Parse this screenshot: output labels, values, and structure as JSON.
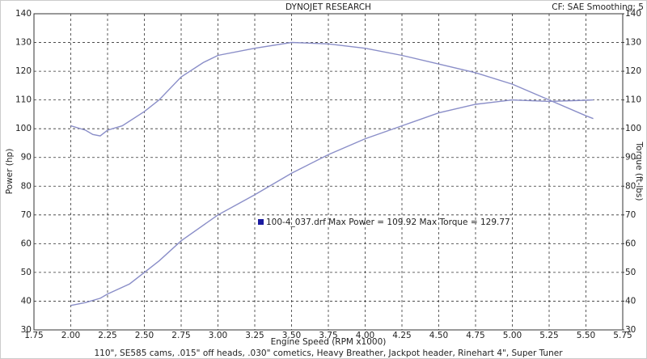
{
  "chart_data": {
    "type": "line",
    "title": "DYNOJET RESEARCH",
    "subtitle": "CF: SAE  Smoothing: 5",
    "x_label": "Engine Speed (RPM x1000)",
    "y_label": "Power (hp)",
    "y2_label": "Torque (ft-lbs)",
    "legend_text": "100-4_037.drf Max Power = 109.92     Max Torque = 129.77",
    "footer": "110\", SE585 cams, .015\" off heads, .030\" cometics, Heavy Breather, Jackpot header, Rinehart 4\", Super Tuner",
    "grid": true,
    "xlim": [
      1.75,
      5.75
    ],
    "ylim": [
      30,
      140
    ],
    "y2lim": [
      30,
      140
    ],
    "xticks": [
      1.75,
      {
        "value": 2,
        "label": "2.00"
      },
      2.25,
      {
        "value": 2.5,
        "label": "2.50"
      },
      2.75,
      {
        "value": 3,
        "label": "3.00"
      },
      3.25,
      {
        "value": 3.5,
        "label": "3.50"
      },
      3.75,
      {
        "value": 4,
        "label": "4.00"
      },
      4.25,
      {
        "value": 4.5,
        "label": "4.50"
      },
      4.75,
      {
        "value": 5,
        "label": "5.00"
      },
      5.25,
      {
        "value": 5.5,
        "label": "5.50"
      },
      5.75
    ],
    "yticks": [
      30,
      40,
      50,
      60,
      70,
      80,
      90,
      100,
      110,
      120,
      130,
      140
    ],
    "y2ticks": [
      30,
      40,
      50,
      60,
      70,
      80,
      90,
      100,
      110,
      120,
      130,
      140
    ],
    "series": [
      {
        "color": "#8a8ec8",
        "x": [
          2.0,
          2.1,
          2.2,
          2.25,
          2.4,
          2.5,
          2.6,
          2.75,
          3.0,
          3.25,
          3.5,
          3.75,
          4.0,
          4.25,
          4.5,
          4.75,
          5.0,
          5.25,
          5.5,
          5.55
        ],
        "values": [
          38.5,
          39.5,
          41,
          42.5,
          46,
          50,
          54,
          61,
          70,
          77,
          84.5,
          91,
          96.5,
          101,
          105.5,
          108.5,
          110,
          109.5,
          109.9,
          110
        ]
      },
      {
        "color": "#8a8ec8",
        "axis": "y2",
        "x": [
          2.0,
          2.1,
          2.15,
          2.2,
          2.25,
          2.35,
          2.5,
          2.6,
          2.75,
          2.9,
          3.0,
          3.25,
          3.5,
          3.75,
          4.0,
          4.25,
          4.5,
          4.75,
          5.0,
          5.25,
          5.5,
          5.55
        ],
        "values": [
          101,
          99.5,
          98,
          97.5,
          99.5,
          101,
          106,
          110,
          118,
          123,
          125.5,
          128,
          130,
          129.5,
          128,
          125.5,
          122.5,
          119.5,
          115.5,
          110,
          104.5,
          103.5
        ]
      }
    ]
  }
}
